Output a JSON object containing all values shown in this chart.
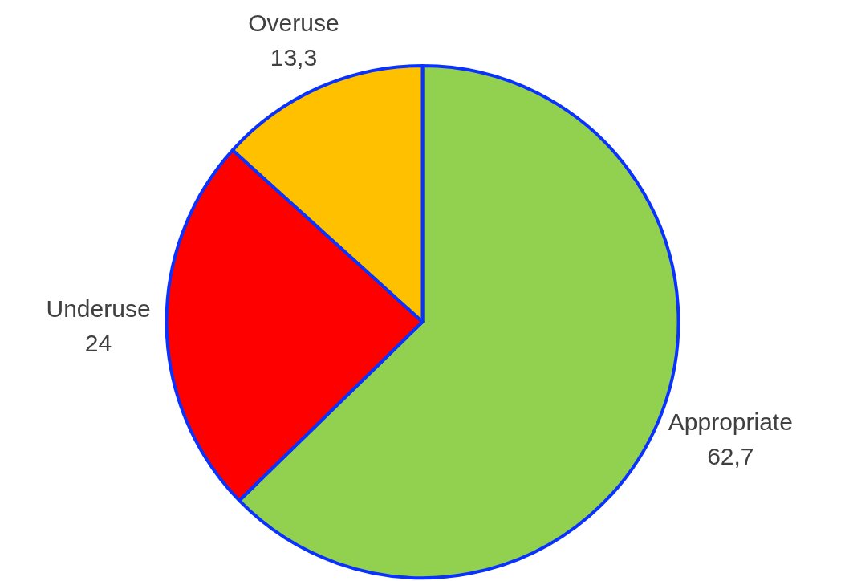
{
  "chart_data": {
    "type": "pie",
    "categories": [
      "Appropriate",
      "Underuse",
      "Overuse"
    ],
    "values": [
      62.7,
      24,
      13.3
    ],
    "colors": [
      "#92d050",
      "#ff0000",
      "#ffc000"
    ],
    "value_labels": [
      "62,7",
      "24",
      "13,3"
    ],
    "legend": false
  }
}
